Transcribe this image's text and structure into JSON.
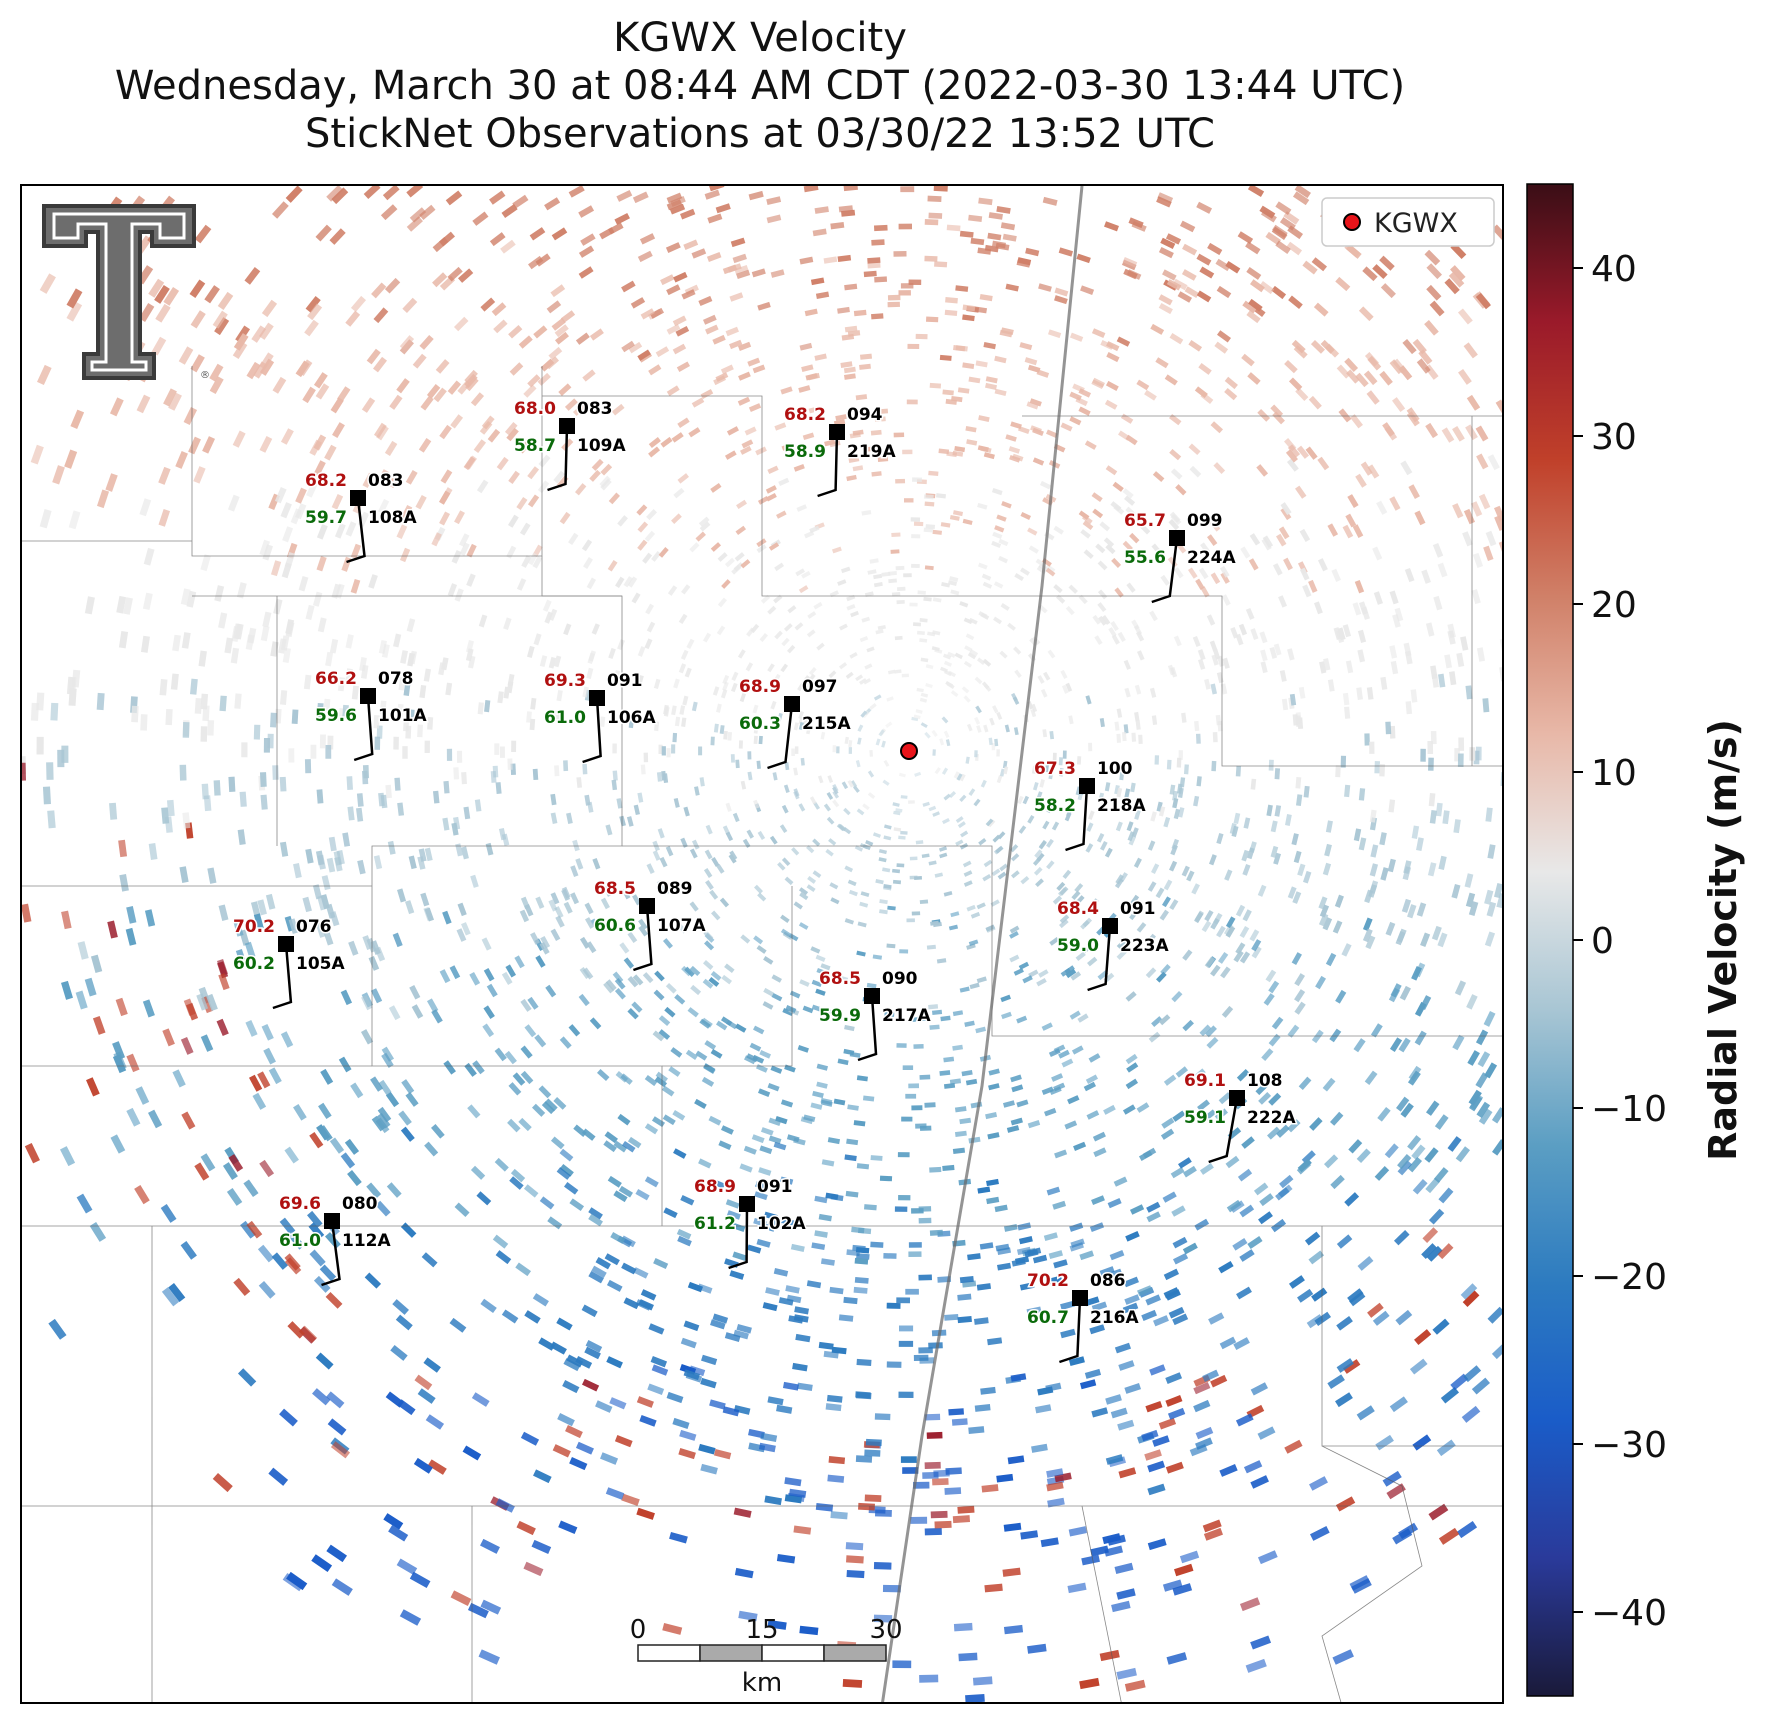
{
  "title": {
    "line1": "KGWX Velocity",
    "line2": "Wednesday, March 30 at 08:44 AM CDT (2022-03-30 13:44 UTC)",
    "line3": "StickNet Observations at 03/30/22 13:52 UTC"
  },
  "legend": {
    "label": "KGWX",
    "marker_color": "#e8141a"
  },
  "radar": {
    "id": "KGWX",
    "color": "#e8141a"
  },
  "logo": {
    "name": "texas-tech-double-t-logo",
    "lettering": "TT",
    "mark": "®"
  },
  "colorbar": {
    "label": "Radial Velocity (m/s)",
    "min": -45,
    "max": 45,
    "ticks": [
      "40",
      "30",
      "20",
      "10",
      "0",
      "−10",
      "−20",
      "−30",
      "−40"
    ],
    "tick_values": [
      40,
      30,
      20,
      10,
      0,
      -10,
      -20,
      -30,
      -40
    ],
    "colors": [
      "#1a1a3a",
      "#2a3a9a",
      "#1a5cc8",
      "#2d7bc0",
      "#5b9ec3",
      "#a9c6d4",
      "#e8e8e8",
      "#e8b8a8",
      "#d08068",
      "#c0402a",
      "#9a1a2a",
      "#3a0e16"
    ]
  },
  "scalebar": {
    "ticks": [
      "0",
      "15",
      "30"
    ],
    "unit": "km"
  },
  "stations": [
    {
      "id": "109A",
      "temp": "68.0",
      "dew": "58.7",
      "dir": "083"
    },
    {
      "id": "219A",
      "temp": "68.2",
      "dew": "58.9",
      "dir": "094"
    },
    {
      "id": "108A",
      "temp": "68.2",
      "dew": "59.7",
      "dir": "083"
    },
    {
      "id": "224A",
      "temp": "65.7",
      "dew": "55.6",
      "dir": "099"
    },
    {
      "id": "101A",
      "temp": "66.2",
      "dew": "59.6",
      "dir": "078"
    },
    {
      "id": "106A",
      "temp": "69.3",
      "dew": "61.0",
      "dir": "091"
    },
    {
      "id": "215A",
      "temp": "68.9",
      "dew": "60.3",
      "dir": "097"
    },
    {
      "id": "218A",
      "temp": "67.3",
      "dew": "58.2",
      "dir": "100"
    },
    {
      "id": "107A",
      "temp": "68.5",
      "dew": "60.6",
      "dir": "089"
    },
    {
      "id": "223A",
      "temp": "68.4",
      "dew": "59.0",
      "dir": "091"
    },
    {
      "id": "105A",
      "temp": "70.2",
      "dew": "60.2",
      "dir": "076"
    },
    {
      "id": "217A",
      "temp": "68.5",
      "dew": "59.9",
      "dir": "090"
    },
    {
      "id": "222A",
      "temp": "69.1",
      "dew": "59.1",
      "dir": "108"
    },
    {
      "id": "102A",
      "temp": "68.9",
      "dew": "61.2",
      "dir": "091"
    },
    {
      "id": "112A",
      "temp": "69.6",
      "dew": "61.0",
      "dir": "080"
    },
    {
      "id": "216A",
      "temp": "70.2",
      "dew": "60.7",
      "dir": "086"
    }
  ],
  "colors": {
    "temp": "#b01010",
    "dew": "#0a6a0a",
    "label": "#000000"
  }
}
